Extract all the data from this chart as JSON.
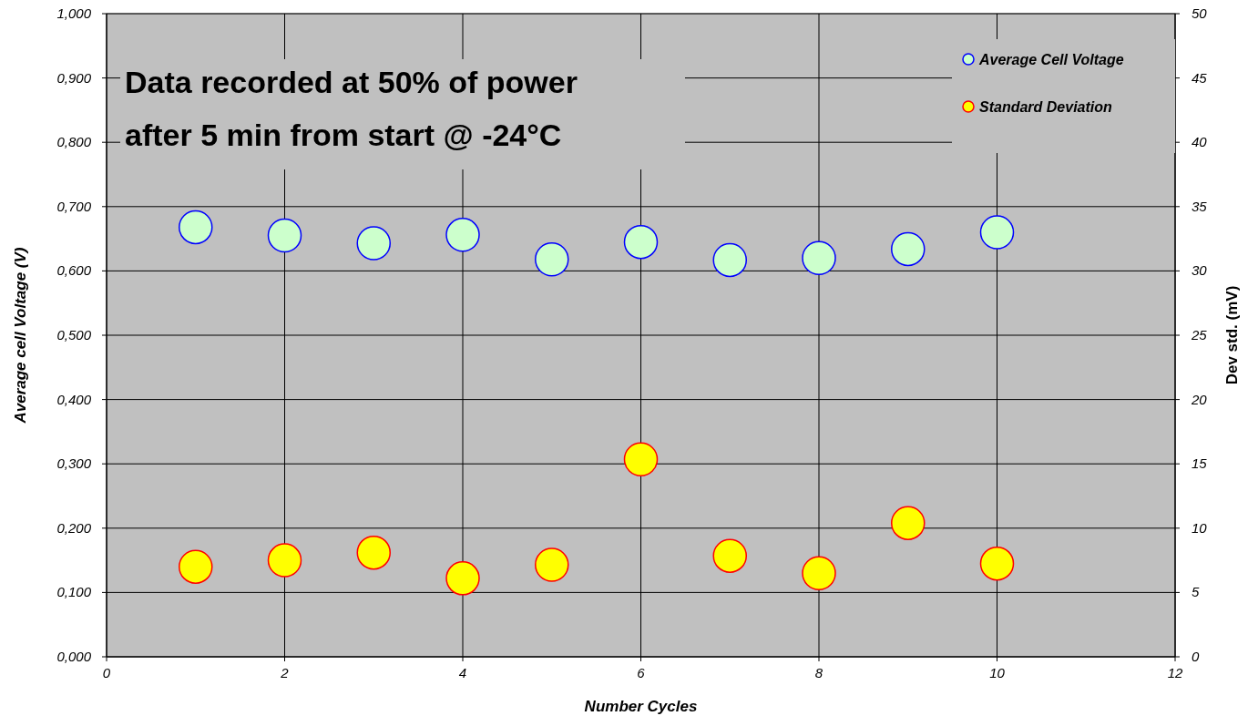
{
  "chart_data": {
    "type": "scatter",
    "xlabel": "Number Cycles",
    "ylabel": "Average cell Voltage (V)",
    "y2label": "Dev std. (mV)",
    "annotations": [
      "Data recorded at 50% of power",
      "after 5 min from start @ -24°C"
    ],
    "x": [
      1,
      2,
      3,
      4,
      5,
      6,
      7,
      8,
      9,
      10
    ],
    "series": [
      {
        "name": "Average Cell Voltage",
        "color": "#ccffcc",
        "values": [
          0.668,
          0.655,
          0.643,
          0.656,
          0.618,
          0.645,
          0.617,
          0.62,
          0.634,
          0.66
        ]
      },
      {
        "name": "Standard Deviation",
        "color": "#ffff00",
        "axis": "y2",
        "values": [
          7.0,
          7.5,
          8.1,
          6.1,
          7.15,
          15.35,
          7.85,
          6.5,
          10.4,
          7.25
        ]
      }
    ],
    "xlim": [
      0,
      12
    ],
    "xticks": [
      0,
      2,
      4,
      6,
      8,
      10,
      12
    ],
    "ylim": [
      0,
      1
    ],
    "yticks": [
      {
        "value": 0,
        "label": "0,000"
      },
      {
        "value": 0.1,
        "label": "0,100"
      },
      {
        "value": 0.2,
        "label": "0,200"
      },
      {
        "value": 0.3,
        "label": "0,300"
      },
      {
        "value": 0.4,
        "label": "0,400"
      },
      {
        "value": 0.5,
        "label": "0,500"
      },
      {
        "value": 0.6,
        "label": "0,600"
      },
      {
        "value": 0.7,
        "label": "0,700"
      },
      {
        "value": 0.8,
        "label": "0,800"
      },
      {
        "value": 0.9,
        "label": "0,900"
      },
      {
        "value": 1,
        "label": "1,000"
      }
    ],
    "y2lim": [
      0,
      50
    ],
    "y2ticks": [
      0,
      5,
      10,
      15,
      20,
      25,
      30,
      35,
      40,
      45,
      50
    ],
    "grid": true,
    "legend": "top right",
    "marker": "circle"
  }
}
